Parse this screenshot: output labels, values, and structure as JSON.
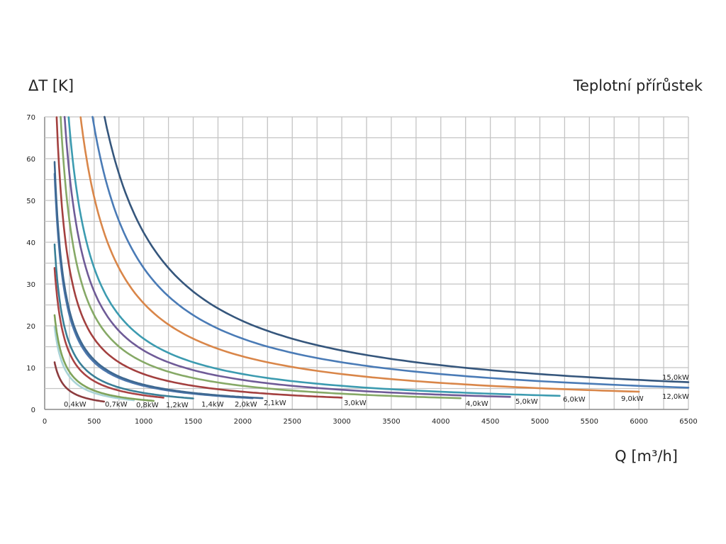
{
  "chart_data": {
    "type": "line",
    "title": "Teplotní přírůstek",
    "xlabel": "Q [m³/h]",
    "ylabel": "ΔT [K]",
    "xlim": [
      0,
      6500
    ],
    "ylim": [
      0,
      70
    ],
    "x_ticks": [
      0,
      500,
      1000,
      1500,
      2000,
      2500,
      3000,
      3500,
      4000,
      4500,
      5000,
      5500,
      6000,
      6500
    ],
    "y_ticks": [
      0,
      10,
      20,
      30,
      40,
      50,
      60,
      70
    ],
    "x_grid_step": 250,
    "y_grid_step": 5,
    "grid": true,
    "legend": "none (inline labels at curve ends)",
    "relation": "ΔT = 2820 · P / Q",
    "coefficient": 2820,
    "series": [
      {
        "name": "0,4kW",
        "power_kw": 0.4,
        "q_range": [
          100,
          600
        ],
        "color": "#8c3b3e"
      },
      {
        "name": "0,7kW",
        "power_kw": 0.7,
        "q_range": [
          100,
          900
        ],
        "color": "#a8d3d6"
      },
      {
        "name": "0,8kW",
        "power_kw": 0.8,
        "q_range": [
          100,
          1100
        ],
        "color": "#7fa35a"
      },
      {
        "name": "1,2kW",
        "power_kw": 1.2,
        "q_range": [
          100,
          1200
        ],
        "color": "#a94344"
      },
      {
        "name": "1,4kW",
        "power_kw": 1.4,
        "q_range": [
          100,
          1500
        ],
        "color": "#3a7f97"
      },
      {
        "name": "2,0kW",
        "power_kw": 2.0,
        "q_range": [
          100,
          2100
        ],
        "color": "#4d77ad"
      },
      {
        "name": "2,1kW",
        "power_kw": 2.1,
        "q_range": [
          100,
          2200
        ],
        "color": "#3e6891"
      },
      {
        "name": "3,0kW",
        "power_kw": 3.0,
        "q_range": [
          121,
          3000
        ],
        "color": "#a3403f"
      },
      {
        "name": "4,0kW",
        "power_kw": 4.0,
        "q_range": [
          161,
          4200
        ],
        "color": "#86a966"
      },
      {
        "name": "5,0kW",
        "power_kw": 5.0,
        "q_range": [
          201,
          4700
        ],
        "color": "#6f5b97"
      },
      {
        "name": "6,0kW",
        "power_kw": 6.0,
        "q_range": [
          242,
          5200
        ],
        "color": "#3c9bb0"
      },
      {
        "name": "9,0kW",
        "power_kw": 9.0,
        "q_range": [
          363,
          6000
        ],
        "color": "#d98649"
      },
      {
        "name": "12,0kW",
        "power_kw": 12.0,
        "q_range": [
          483,
          6500
        ],
        "color": "#4a7bb6"
      },
      {
        "name": "15,0kW",
        "power_kw": 15.0,
        "q_range": [
          604,
          6500
        ],
        "color": "#35567c"
      }
    ]
  }
}
